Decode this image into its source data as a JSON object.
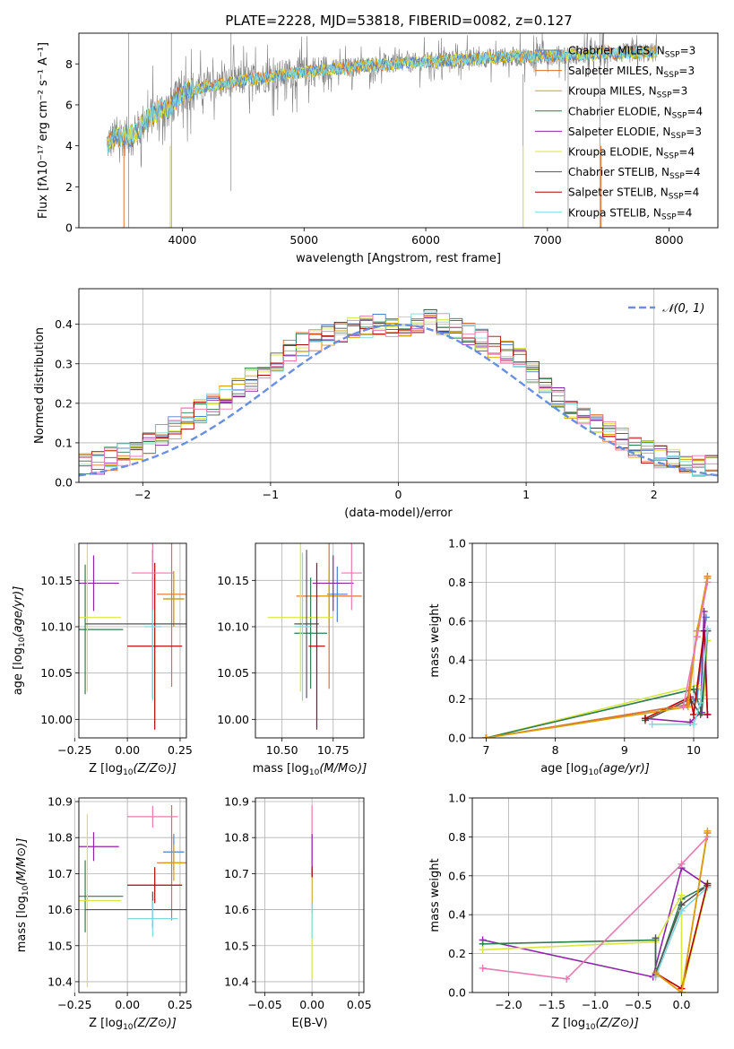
{
  "figure_title": "PLATE=2228, MJD=53818, FIBERID=0082, z=0.127",
  "model_colors": {
    "Chabrier MILES": "#4f7fcf",
    "Salpeter MILES": "#e07030",
    "Kroupa MILES": "#d9a000",
    "Chabrier ELODIE": "#2e7d4f",
    "Salpeter ELODIE": "#8e24aa",
    "Kroupa ELODIE": "#d8e640",
    "Chabrier STELIB": "#555555",
    "Salpeter STELIB": "#b40000",
    "Kroupa STELIB": "#7fd8dc",
    "data": "#808080",
    "normal": "#6a8ee0",
    "pink": "#e87ab0"
  },
  "chart_data": [
    {
      "id": "spectrum",
      "type": "line",
      "title": "PLATE=2228, MJD=53818, FIBERID=0082, z=0.127",
      "xlabel": "wavelength [Angstrom, rest frame]",
      "ylabel": "Flux [fλ10⁻¹⁷ erg cm⁻² s⁻¹ A⁻¹]",
      "xlim": [
        3150,
        8400
      ],
      "ylim": [
        0,
        9.5
      ],
      "xticks": [
        4000,
        5000,
        6000,
        7000,
        8000
      ],
      "yticks": [
        0,
        2,
        4,
        6,
        8
      ],
      "grid": false,
      "legend_position": "top-right",
      "legend": [
        {
          "label": "Chabrier MILES, N",
          "sub": "SSP",
          "suffix": "=3"
        },
        {
          "label": "Salpeter MILES, N",
          "sub": "SSP",
          "suffix": "=3"
        },
        {
          "label": "Kroupa MILES, N",
          "sub": "SSP",
          "suffix": "=3"
        },
        {
          "label": "Chabrier ELODIE, N",
          "sub": "SSP",
          "suffix": "=4"
        },
        {
          "label": "Salpeter ELODIE, N",
          "sub": "SSP",
          "suffix": "=3"
        },
        {
          "label": "Kroupa ELODIE, N",
          "sub": "SSP",
          "suffix": "=4"
        },
        {
          "label": "Chabrier STELIB, N",
          "sub": "SSP",
          "suffix": "=4"
        },
        {
          "label": "Salpeter STELIB, N",
          "sub": "SSP",
          "suffix": "=4"
        },
        {
          "label": "Kroupa STELIB, N",
          "sub": "SSP",
          "suffix": "=4"
        }
      ],
      "continuum": {
        "x": [
          3380,
          3450,
          3600,
          3700,
          3800,
          3900,
          4000,
          4200,
          4500,
          5000,
          5500,
          6000,
          6500,
          7000,
          7500,
          7900
        ],
        "y": [
          4.1,
          4.4,
          4.5,
          5.3,
          5.7,
          5.9,
          6.6,
          6.9,
          7.2,
          7.6,
          7.9,
          8.1,
          8.3,
          8.4,
          8.5,
          8.55
        ]
      }
    },
    {
      "id": "residuals",
      "type": "line",
      "xlabel": "(data-model)/error",
      "ylabel": "Normed distribution",
      "xlim": [
        -2.5,
        2.5
      ],
      "ylim": [
        0,
        0.49
      ],
      "xticks": [
        -2,
        -1,
        0,
        1,
        2
      ],
      "yticks": [
        0.0,
        0.1,
        0.2,
        0.3,
        0.4
      ],
      "grid": true,
      "legend_position": "top-right",
      "legend": [
        {
          "label": "𝒩(0, 1)"
        }
      ],
      "bin_width": 0.1,
      "hist_base": [
        0.02,
        0.025,
        0.03,
        0.035,
        0.04,
        0.045,
        0.05,
        0.06,
        0.07,
        0.085,
        0.1,
        0.12,
        0.14,
        0.16,
        0.18,
        0.2,
        0.215,
        0.235,
        0.26,
        0.29,
        0.31,
        0.33,
        0.35,
        0.36,
        0.37,
        0.38,
        0.39,
        0.395,
        0.4,
        0.395,
        0.4,
        0.405,
        0.41,
        0.4,
        0.39,
        0.375,
        0.36,
        0.34,
        0.33,
        0.31,
        0.28,
        0.25,
        0.22,
        0.19,
        0.17,
        0.15,
        0.13,
        0.11,
        0.09,
        0.075,
        0.065,
        0.055,
        0.05,
        0.045,
        0.04,
        0.035,
        0.03,
        0.03,
        0.025,
        0.02
      ]
    },
    {
      "id": "age-vs-Z",
      "type": "scatter",
      "xlabel": "Z [log10(Z/Z⊙)]",
      "ylabel": "age  [log10(age/yr)]",
      "xlim": [
        -0.23,
        0.28
      ],
      "ylim": [
        9.98,
        10.19
      ],
      "xticks": [
        -0.25,
        0.0,
        0.25
      ],
      "yticks": [
        10.0,
        10.05,
        10.1,
        10.15
      ],
      "grid": true,
      "points": [
        {
          "model": "Chabrier MILES",
          "x": 0.22,
          "y": 10.13,
          "ex": 0.05,
          "ey": 0.03
        },
        {
          "model": "Salpeter MILES",
          "x": 0.21,
          "y": 10.135,
          "ex": 0.07,
          "ey": 0.1
        },
        {
          "model": "Kroupa MILES",
          "x": 0.22,
          "y": 10.13,
          "ex": 0.05,
          "ey": 0.03
        },
        {
          "model": "Chabrier ELODIE",
          "x": -0.2,
          "y": 10.097,
          "ex": 0.18,
          "ey": 0.07
        },
        {
          "model": "Salpeter ELODIE",
          "x": -0.16,
          "y": 10.147,
          "ex": 0.12,
          "ey": 0.03
        },
        {
          "model": "Kroupa ELODIE",
          "x": -0.19,
          "y": 10.11,
          "ex": 0.16,
          "ey": 0.08
        },
        {
          "model": "Chabrier STELIB",
          "x": 0.12,
          "y": 10.103,
          "ex": 0.32,
          "ey": 0.08
        },
        {
          "model": "Salpeter STELIB",
          "x": 0.13,
          "y": 10.079,
          "ex": 0.13,
          "ey": 0.09
        },
        {
          "model": "Kroupa STELIB",
          "x": 0.12,
          "y": 10.1,
          "ex": 0.04,
          "ey": 0.08
        },
        {
          "model": "pink",
          "x": 0.12,
          "y": 10.158,
          "ex": 0.1,
          "ey": 0.04
        }
      ]
    },
    {
      "id": "age-vs-mass",
      "type": "scatter",
      "xlabel": "mass [log10(M/M⊙)]",
      "ylabel": "",
      "xlim": [
        10.37,
        10.9
      ],
      "ylim": [
        9.98,
        10.19
      ],
      "xticks": [
        10.5,
        10.75
      ],
      "yticks": [
        10.0,
        10.05,
        10.1,
        10.15
      ],
      "grid": true,
      "points": [
        {
          "model": "Chabrier MILES",
          "x": 10.77,
          "y": 10.135,
          "ex": 0.05,
          "ey": 0.03
        },
        {
          "model": "Salpeter MILES",
          "x": 10.73,
          "y": 10.133,
          "ex": 0.16,
          "ey": 0.1
        },
        {
          "model": "Kroupa MILES",
          "x": 10.73,
          "y": 10.133,
          "ex": 0.05,
          "ey": 0.03
        },
        {
          "model": "Chabrier ELODIE",
          "x": 10.64,
          "y": 10.093,
          "ex": 0.08,
          "ey": 0.06
        },
        {
          "model": "Salpeter ELODIE",
          "x": 10.75,
          "y": 10.147,
          "ex": 0.1,
          "ey": 0.03
        },
        {
          "model": "Kroupa ELODIE",
          "x": 10.59,
          "y": 10.11,
          "ex": 0.16,
          "ey": 0.08
        },
        {
          "model": "Chabrier STELIB",
          "x": 10.62,
          "y": 10.103,
          "ex": 0.06,
          "ey": 0.08
        },
        {
          "model": "Salpeter STELIB",
          "x": 10.67,
          "y": 10.079,
          "ex": 0.04,
          "ey": 0.09
        },
        {
          "model": "Kroupa STELIB",
          "x": 10.6,
          "y": 10.1,
          "ex": 0.04,
          "ey": 0.08
        },
        {
          "model": "pink",
          "x": 10.84,
          "y": 10.158,
          "ex": 0.05,
          "ey": 0.04
        }
      ]
    },
    {
      "id": "mass-weight-vs-age",
      "type": "line",
      "xlabel": "age  [log10(age/yr)]",
      "ylabel": "mass weight",
      "xlim": [
        6.8,
        10.35
      ],
      "ylim": [
        0.0,
        1.0
      ],
      "xticks": [
        7,
        8,
        9,
        10
      ],
      "yticks": [
        0.0,
        0.2,
        0.4,
        0.6,
        0.8,
        1.0
      ],
      "grid": true,
      "series": [
        {
          "model": "Chabrier MILES",
          "x": [
            7.0,
            9.9,
            10.05,
            10.15,
            10.18
          ],
          "y": [
            0.0,
            0.17,
            0.2,
            0.55,
            0.62
          ]
        },
        {
          "model": "Kroupa ELODIE",
          "x": [
            7.0,
            10.05,
            10.15,
            10.2
          ],
          "y": [
            0.0,
            0.27,
            0.22,
            0.5
          ]
        },
        {
          "model": "Chabrier ELODIE",
          "x": [
            7.0,
            10.0,
            10.12,
            10.2
          ],
          "y": [
            0.0,
            0.25,
            0.13,
            0.55
          ]
        },
        {
          "model": "Salpeter ELODIE",
          "x": [
            9.3,
            9.95,
            10.1,
            10.15,
            10.2
          ],
          "y": [
            0.1,
            0.08,
            0.13,
            0.65,
            0.12
          ]
        },
        {
          "model": "Chabrier STELIB",
          "x": [
            9.3,
            9.95,
            10.1,
            10.2
          ],
          "y": [
            0.09,
            0.2,
            0.12,
            0.55
          ]
        },
        {
          "model": "Salpeter STELIB",
          "x": [
            9.3,
            9.95,
            10.0,
            10.15,
            10.2
          ],
          "y": [
            0.1,
            0.21,
            0.12,
            0.55,
            0.12
          ]
        },
        {
          "model": "Kroupa STELIB",
          "x": [
            9.4,
            10.0,
            10.1,
            10.2
          ],
          "y": [
            0.07,
            0.07,
            0.18,
            0.56
          ]
        },
        {
          "model": "Salpeter MILES",
          "x": [
            7.0,
            9.9,
            10.05,
            10.2
          ],
          "y": [
            0.0,
            0.17,
            0.55,
            0.83
          ]
        },
        {
          "model": "Kroupa MILES",
          "x": [
            7.0,
            9.92,
            10.05,
            10.2
          ],
          "y": [
            0.0,
            0.16,
            0.55,
            0.82
          ]
        },
        {
          "model": "pink",
          "x": [
            9.85,
            10.05,
            10.2
          ],
          "y": [
            0.16,
            0.52,
            0.8
          ]
        }
      ]
    },
    {
      "id": "mass-vs-Z",
      "type": "scatter",
      "xlabel": "Z [log10(Z/Z⊙)]",
      "ylabel": "mass [log10(M/M⊙)]",
      "xlim": [
        -0.23,
        0.28
      ],
      "ylim": [
        10.37,
        10.91
      ],
      "xticks": [
        -0.25,
        0.0,
        0.25
      ],
      "yticks": [
        10.4,
        10.5,
        10.6,
        10.7,
        10.8,
        10.9
      ],
      "grid": true,
      "points": [
        {
          "model": "Chabrier MILES",
          "x": 0.22,
          "y": 10.76,
          "ex": 0.05,
          "ey": 0.05
        },
        {
          "model": "Salpeter MILES",
          "x": 0.21,
          "y": 10.73,
          "ex": 0.07,
          "ey": 0.16
        },
        {
          "model": "Kroupa MILES",
          "x": 0.22,
          "y": 10.73,
          "ex": 0.05,
          "ey": 0.05
        },
        {
          "model": "Chabrier ELODIE",
          "x": -0.2,
          "y": 10.637,
          "ex": 0.18,
          "ey": 0.1
        },
        {
          "model": "Salpeter ELODIE",
          "x": -0.16,
          "y": 10.775,
          "ex": 0.12,
          "ey": 0.04
        },
        {
          "model": "Kroupa ELODIE",
          "x": -0.19,
          "y": 10.625,
          "ex": 0.16,
          "ey": 0.24
        },
        {
          "model": "Chabrier STELIB",
          "x": 0.12,
          "y": 10.6,
          "ex": 0.32,
          "ey": 0.05
        },
        {
          "model": "Salpeter STELIB",
          "x": 0.13,
          "y": 10.668,
          "ex": 0.13,
          "ey": 0.05
        },
        {
          "model": "Kroupa STELIB",
          "x": 0.12,
          "y": 10.575,
          "ex": 0.12,
          "ey": 0.05
        },
        {
          "model": "pink",
          "x": 0.12,
          "y": 10.858,
          "ex": 0.12,
          "ey": 0.03
        }
      ]
    },
    {
      "id": "mass-vs-ebv",
      "type": "scatter",
      "xlabel": "E(B-V)",
      "ylabel": "",
      "xlim": [
        -0.06,
        0.055
      ],
      "ylim": [
        10.37,
        10.91
      ],
      "xticks": [
        -0.05,
        0.0,
        0.05
      ],
      "yticks": [
        10.4,
        10.5,
        10.6,
        10.7,
        10.8,
        10.9
      ],
      "grid": true,
      "points": [
        {
          "model": "pink",
          "x": 0.0,
          "y": 10.75,
          "ex": 0.0,
          "ey": 0.14
        },
        {
          "model": "Salpeter ELODIE",
          "x": 0.0,
          "y": 10.7,
          "ex": 0.0,
          "ey": 0.11
        },
        {
          "model": "Salpeter STELIB",
          "x": 0.0,
          "y": 10.67,
          "ex": 0.0,
          "ey": 0.05
        },
        {
          "model": "Kroupa ELODIE",
          "x": 0.0,
          "y": 10.55,
          "ex": 0.0,
          "ey": 0.14
        },
        {
          "model": "Kroupa STELIB",
          "x": 0.0,
          "y": 10.57,
          "ex": 0.0,
          "ey": 0.05
        }
      ]
    },
    {
      "id": "mass-weight-vs-Z",
      "type": "line",
      "xlabel": "Z [log10(Z/Z⊙)]",
      "ylabel": "mass weight",
      "xlim": [
        -2.42,
        0.42
      ],
      "ylim": [
        0.0,
        1.0
      ],
      "xticks": [
        -2.0,
        -1.5,
        -1.0,
        -0.5,
        0.0
      ],
      "yticks": [
        0.0,
        0.2,
        0.4,
        0.6,
        0.8,
        1.0
      ],
      "grid": true,
      "series": [
        {
          "model": "Salpeter ELODIE",
          "x": [
            -2.3,
            -0.33,
            0.0,
            0.3
          ],
          "y": [
            0.27,
            0.08,
            0.64,
            0.55
          ]
        },
        {
          "model": "Chabrier ELODIE",
          "x": [
            -2.3,
            -0.3,
            -0.3,
            0.0,
            0.3
          ],
          "y": [
            0.25,
            0.27,
            0.09,
            0.48,
            0.55
          ]
        },
        {
          "model": "Kroupa ELODIE",
          "x": [
            -2.3,
            -0.3,
            0.0,
            0.0,
            0.3
          ],
          "y": [
            0.22,
            0.26,
            0.5,
            0.0,
            0.55
          ]
        },
        {
          "model": "Chabrier STELIB",
          "x": [
            -0.3,
            -0.3,
            0.0,
            0.3
          ],
          "y": [
            0.28,
            0.1,
            0.45,
            0.55
          ]
        },
        {
          "model": "Kroupa STELIB",
          "x": [
            -0.3,
            0.0,
            0.3
          ],
          "y": [
            0.08,
            0.42,
            0.54
          ]
        },
        {
          "model": "Salpeter STELIB",
          "x": [
            -0.3,
            0.0,
            0.3
          ],
          "y": [
            0.1,
            0.02,
            0.56
          ]
        },
        {
          "model": "Salpeter MILES",
          "x": [
            -0.3,
            0.0,
            0.3
          ],
          "y": [
            0.1,
            0.0,
            0.82
          ]
        },
        {
          "model": "Kroupa MILES",
          "x": [
            -0.3,
            0.0,
            0.3
          ],
          "y": [
            0.1,
            0.0,
            0.83
          ]
        },
        {
          "model": "pink",
          "x": [
            -2.3,
            -1.33,
            0.0,
            0.3
          ],
          "y": [
            0.125,
            0.07,
            0.66,
            0.8
          ]
        }
      ]
    }
  ]
}
